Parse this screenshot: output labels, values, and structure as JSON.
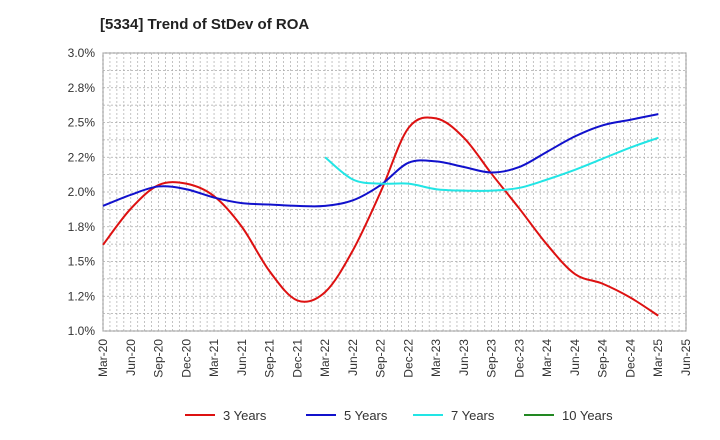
{
  "chart_data": {
    "type": "line",
    "title": "[5334]  Trend of StDev of ROA",
    "xlabel": "",
    "ylabel": "",
    "x_ticks": [
      "Mar-20",
      "Jun-20",
      "Sep-20",
      "Dec-20",
      "Mar-21",
      "Jun-21",
      "Sep-21",
      "Dec-21",
      "Mar-22",
      "Jun-22",
      "Sep-22",
      "Dec-22",
      "Mar-23",
      "Jun-23",
      "Sep-23",
      "Dec-23",
      "Mar-24",
      "Jun-24",
      "Sep-24",
      "Dec-24",
      "Mar-25",
      "Jun-25"
    ],
    "y_ticks": [
      "3.0%",
      "2.8%",
      "2.5%",
      "2.2%",
      "2.0%",
      "1.8%",
      "1.5%",
      "1.2%",
      "1.0%"
    ],
    "ylim": [
      1.0,
      3.0
    ],
    "grid": true,
    "legend_position": "bottom",
    "series": [
      {
        "name": "3 Years",
        "color": "#dd1111",
        "points": [
          [
            "Mar-20",
            1.62
          ],
          [
            "Jun-20",
            1.88
          ],
          [
            "Sep-20",
            2.05
          ],
          [
            "Dec-20",
            2.06
          ],
          [
            "Mar-21",
            1.97
          ],
          [
            "Jun-21",
            1.75
          ],
          [
            "Sep-21",
            1.43
          ],
          [
            "Dec-21",
            1.22
          ],
          [
            "Mar-22",
            1.28
          ],
          [
            "Jun-22",
            1.58
          ],
          [
            "Sep-22",
            2.0
          ],
          [
            "Dec-22",
            2.46
          ],
          [
            "Mar-23",
            2.53
          ],
          [
            "Jun-23",
            2.39
          ],
          [
            "Sep-23",
            2.13
          ],
          [
            "Dec-23",
            1.88
          ],
          [
            "Mar-24",
            1.62
          ],
          [
            "Jun-24",
            1.41
          ],
          [
            "Sep-24",
            1.34
          ],
          [
            "Dec-24",
            1.24
          ],
          [
            "Mar-25",
            1.11
          ]
        ]
      },
      {
        "name": "5 Years",
        "color": "#1111cc",
        "points": [
          [
            "Mar-20",
            1.9
          ],
          [
            "Jun-20",
            1.98
          ],
          [
            "Sep-20",
            2.04
          ],
          [
            "Dec-20",
            2.02
          ],
          [
            "Mar-21",
            1.96
          ],
          [
            "Jun-21",
            1.92
          ],
          [
            "Sep-21",
            1.91
          ],
          [
            "Dec-21",
            1.9
          ],
          [
            "Mar-22",
            1.9
          ],
          [
            "Jun-22",
            1.94
          ],
          [
            "Sep-22",
            2.05
          ],
          [
            "Dec-22",
            2.21
          ],
          [
            "Mar-23",
            2.22
          ],
          [
            "Jun-23",
            2.18
          ],
          [
            "Sep-23",
            2.14
          ],
          [
            "Dec-23",
            2.18
          ],
          [
            "Mar-24",
            2.29
          ],
          [
            "Jun-24",
            2.4
          ],
          [
            "Sep-24",
            2.48
          ],
          [
            "Dec-24",
            2.52
          ],
          [
            "Mar-25",
            2.56
          ]
        ]
      },
      {
        "name": "7 Years",
        "color": "#22e5e5",
        "points": [
          [
            "Mar-22",
            2.25
          ],
          [
            "Jun-22",
            2.09
          ],
          [
            "Sep-22",
            2.06
          ],
          [
            "Dec-22",
            2.06
          ],
          [
            "Mar-23",
            2.02
          ],
          [
            "Jun-23",
            2.01
          ],
          [
            "Sep-23",
            2.01
          ],
          [
            "Dec-23",
            2.03
          ],
          [
            "Mar-24",
            2.09
          ],
          [
            "Jun-24",
            2.16
          ],
          [
            "Sep-24",
            2.24
          ],
          [
            "Dec-24",
            2.32
          ],
          [
            "Mar-25",
            2.39
          ]
        ]
      },
      {
        "name": "10 Years",
        "color": "#228822",
        "points": []
      }
    ]
  }
}
